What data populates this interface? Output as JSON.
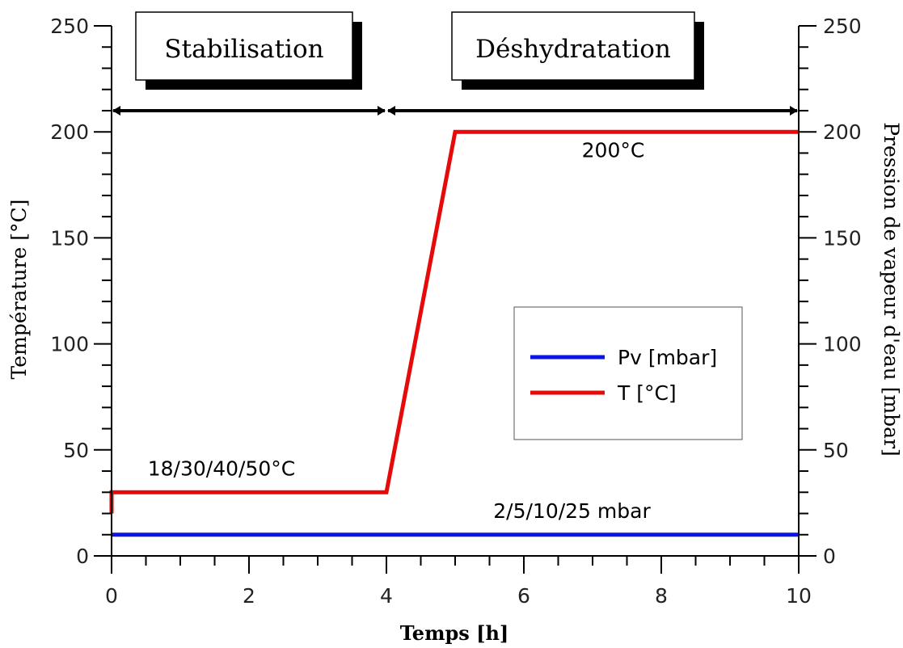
{
  "chart_data": {
    "type": "line",
    "xlabel": "Temps [h]",
    "ylabel_left": "Température [°C]",
    "ylabel_right": "Pression de vapeur d'eau [mbar]",
    "xlim": [
      0,
      10
    ],
    "ylim": [
      0,
      250
    ],
    "x_ticks": [
      "0",
      "2",
      "4",
      "6",
      "8",
      "10"
    ],
    "y_ticks_left": [
      "0",
      "50",
      "100",
      "150",
      "200",
      "250"
    ],
    "y_ticks_right": [
      "0",
      "50",
      "100",
      "150",
      "200",
      "250"
    ],
    "series": [
      {
        "name": "Pv [mbar]",
        "color": "#0a14e6",
        "x": [
          0,
          10
        ],
        "y": [
          10,
          10
        ]
      },
      {
        "name": "T [°C]",
        "color": "#e60a0a",
        "x": [
          0,
          0,
          4,
          5,
          10
        ],
        "y": [
          20,
          30,
          30,
          200,
          200
        ]
      }
    ],
    "phases": [
      {
        "label": "Stabilisation",
        "x_start": 0,
        "x_end": 4
      },
      {
        "label": "Déshydratation",
        "x_start": 4,
        "x_end": 10
      }
    ],
    "annotations": [
      {
        "text": "200°C",
        "x": 7.3,
        "y": 188
      },
      {
        "text": "18/30/40/50°C",
        "x": 1.6,
        "y": 38
      },
      {
        "text": "2/5/10/25 mbar",
        "x": 6.7,
        "y": 18
      }
    ],
    "phase_arrow_y": 210,
    "legend_position": "center-right"
  }
}
